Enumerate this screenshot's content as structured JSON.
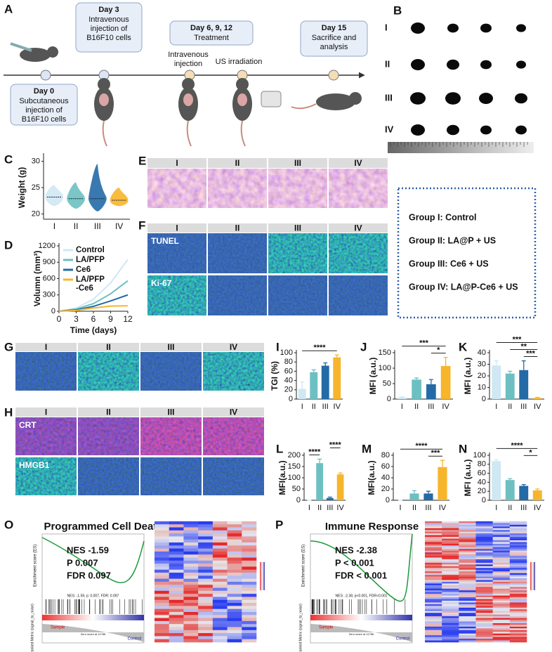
{
  "panel_A": {
    "label": "A",
    "events": [
      {
        "day": "Day 0",
        "lines": [
          "Subcutaneous",
          "injection  of",
          "B16F10 cells"
        ]
      },
      {
        "day": "Day 3",
        "lines": [
          "Intravenous",
          "injection of",
          "B16F10 cells"
        ]
      },
      {
        "day": "Day 6, 9, 12",
        "lines": [
          "Treatment"
        ]
      },
      {
        "day": "Day 15",
        "lines": [
          "Sacrifice and",
          "analysis"
        ]
      }
    ],
    "notes": [
      [
        "Intravenous",
        "injection"
      ],
      [
        "US irradiation"
      ]
    ]
  },
  "panel_B": {
    "label": "B",
    "rows": [
      "I",
      "II",
      "III",
      "IV"
    ]
  },
  "panel_E": {
    "label": "E",
    "columns": [
      "I",
      "II",
      "III",
      "IV"
    ]
  },
  "panel_F": {
    "label": "F",
    "columns": [
      "I",
      "II",
      "III",
      "IV"
    ],
    "rows": [
      "TUNEL",
      "Ki-67"
    ]
  },
  "groups": [
    "Group I: Control",
    "Group II: LA@P + US",
    "Group III: Ce6 + US",
    "Group IV: LA@P-Ce6 + US"
  ],
  "panel_G": {
    "label": "G",
    "columns": [
      "I",
      "II",
      "III",
      "IV"
    ]
  },
  "panel_H": {
    "label": "H",
    "columns": [
      "I",
      "II",
      "III",
      "IV"
    ],
    "rows": [
      "CRT",
      "HMGB1"
    ]
  },
  "gsea": [
    {
      "label": "O",
      "title": "Programmed Cell Death",
      "stats": [
        "NES -1.59",
        "P 0.007",
        "FDR 0.097"
      ],
      "summary": "NES: -1.59, p: 0.007, FDR: 0.097",
      "y_label": "Enrichment score (ES)",
      "metric_label": "Ranked Metric (signal_to_noise)",
      "sample": "Sample",
      "control": "Control",
      "zero": "Zero score at 11786"
    },
    {
      "label": "P",
      "title": "Immune Response",
      "stats": [
        "NES -2.38",
        "P < 0.001",
        "FDR < 0.001"
      ],
      "summary": "NES: -2.38, p<0.001, FDR<0.001",
      "y_label": "Enrichment score (ES)",
      "metric_label": "Ranked Metric (signal_to_noise)",
      "sample": "Sample",
      "control": "Control",
      "zero": "Zero score at 11786"
    }
  ],
  "chart_data": [
    {
      "type": "violin",
      "label": "C",
      "ylabel": "Weight (g)",
      "categories": [
        "I",
        "II",
        "III",
        "IV"
      ],
      "values": [
        23.2,
        22.9,
        22.9,
        22.6
      ],
      "mins": [
        21.5,
        21,
        20.5,
        21.5
      ],
      "maxs": [
        25.5,
        26,
        29.5,
        25
      ],
      "colors": [
        "#cfe8f3",
        "#6cc0c2",
        "#236aa6",
        "#f7b52c"
      ],
      "ylim": [
        19,
        31
      ],
      "yticks": [
        20,
        25,
        30
      ]
    },
    {
      "type": "line",
      "label": "D",
      "ylabel": "Volumn (mm³)",
      "xlabel": "Time (days)",
      "x": [
        0,
        3,
        6,
        9,
        12
      ],
      "series": [
        {
          "name": "Control",
          "color": "#cfe8f3",
          "values": [
            0,
            60,
            220,
            520,
            950
          ]
        },
        {
          "name": "LA/PFP",
          "color": "#6cc0c2",
          "values": [
            0,
            40,
            140,
            320,
            560
          ]
        },
        {
          "name": "Ce6",
          "color": "#236aa6",
          "values": [
            0,
            25,
            90,
            190,
            300
          ]
        },
        {
          "name": "LA/PFP\n-Ce6",
          "color": "#f7b52c",
          "values": [
            0,
            15,
            60,
            95,
            100
          ]
        }
      ],
      "xlim": [
        0,
        12
      ],
      "xticks": [
        0,
        3,
        6,
        9,
        12
      ],
      "ylim": [
        0,
        1200
      ],
      "yticks": [
        0,
        300,
        600,
        900,
        1200
      ]
    },
    {
      "type": "bar",
      "label": "I",
      "ylabel": "TGI (%)",
      "categories": [
        "I",
        "II",
        "III",
        "IV"
      ],
      "values": [
        22,
        58,
        72,
        90
      ],
      "errors": [
        15,
        5,
        6,
        5
      ],
      "colors": [
        "#cfe8f3",
        "#6cc0c2",
        "#236aa6",
        "#f7b52c"
      ],
      "ylim": [
        0,
        100
      ],
      "yticks": [
        0,
        20,
        40,
        60,
        80,
        100
      ],
      "comparisons": [
        {
          "text": "****",
          "groups": [
            "I",
            "IV"
          ]
        }
      ]
    },
    {
      "type": "bar",
      "label": "J",
      "ylabel": "MFI (a.u.)",
      "categories": [
        "I",
        "II",
        "III",
        "IV"
      ],
      "values": [
        5,
        63,
        48,
        107
      ],
      "errors": [
        2,
        5,
        15,
        28
      ],
      "colors": [
        "#cfe8f3",
        "#6cc0c2",
        "#236aa6",
        "#f7b52c"
      ],
      "ylim": [
        0,
        150
      ],
      "yticks": [
        0,
        50,
        100,
        150
      ],
      "comparisons": [
        {
          "text": "*",
          "groups": [
            "III",
            "IV"
          ]
        },
        {
          "text": "***",
          "groups": [
            "I",
            "IV"
          ]
        }
      ]
    },
    {
      "type": "bar",
      "label": "K",
      "ylabel": "MFI (a.u.)",
      "categories": [
        "I",
        "II",
        "III",
        "IV"
      ],
      "values": [
        29,
        22,
        25,
        1
      ],
      "errors": [
        4,
        2,
        8,
        0.5
      ],
      "colors": [
        "#cfe8f3",
        "#6cc0c2",
        "#236aa6",
        "#f7b52c"
      ],
      "ylim": [
        0,
        40
      ],
      "yticks": [
        0,
        10,
        20,
        30,
        40
      ],
      "comparisons": [
        {
          "text": "***",
          "groups": [
            "III",
            "IV"
          ]
        },
        {
          "text": "**",
          "groups": [
            "II",
            "IV"
          ]
        },
        {
          "text": "***",
          "groups": [
            "I",
            "IV"
          ]
        }
      ]
    },
    {
      "type": "bar",
      "label": "L",
      "ylabel": "MFI(a.u.)",
      "categories": [
        "I",
        "II",
        "III",
        "IV"
      ],
      "values": [
        0,
        165,
        10,
        115
      ],
      "errors": [
        0,
        18,
        4,
        6
      ],
      "colors": [
        "#cfe8f3",
        "#6cc0c2",
        "#236aa6",
        "#f7b52c"
      ],
      "ylim": [
        0,
        200
      ],
      "yticks": [
        0,
        50,
        100,
        150,
        200
      ],
      "comparisons": [
        {
          "text": "****",
          "groups": [
            "I",
            "II"
          ]
        },
        {
          "text": "****",
          "groups": [
            "III",
            "IV"
          ]
        }
      ]
    },
    {
      "type": "bar",
      "label": "M",
      "ylabel": "MFI(a.u.)",
      "categories": [
        "I",
        "II",
        "III",
        "IV"
      ],
      "values": [
        0,
        12,
        12,
        59
      ],
      "errors": [
        0,
        5,
        4,
        12
      ],
      "colors": [
        "#cfe8f3",
        "#6cc0c2",
        "#236aa6",
        "#f7b52c"
      ],
      "ylim": [
        0,
        80
      ],
      "yticks": [
        0,
        20,
        40,
        60,
        80
      ],
      "comparisons": [
        {
          "text": "***",
          "groups": [
            "III",
            "IV"
          ]
        },
        {
          "text": "****",
          "groups": [
            "I",
            "IV"
          ]
        }
      ]
    },
    {
      "type": "bar",
      "label": "N",
      "ylabel": "MFI (a.u.)",
      "categories": [
        "I",
        "II",
        "III",
        "IV"
      ],
      "values": [
        87,
        45,
        32,
        22
      ],
      "errors": [
        3,
        3,
        3,
        3
      ],
      "colors": [
        "#cfe8f3",
        "#6cc0c2",
        "#236aa6",
        "#f7b52c"
      ],
      "ylim": [
        0,
        100
      ],
      "yticks": [
        0,
        20,
        40,
        60,
        80,
        100
      ],
      "comparisons": [
        {
          "text": "*",
          "groups": [
            "III",
            "IV"
          ]
        },
        {
          "text": "****",
          "groups": [
            "I",
            "IV"
          ]
        }
      ]
    }
  ]
}
